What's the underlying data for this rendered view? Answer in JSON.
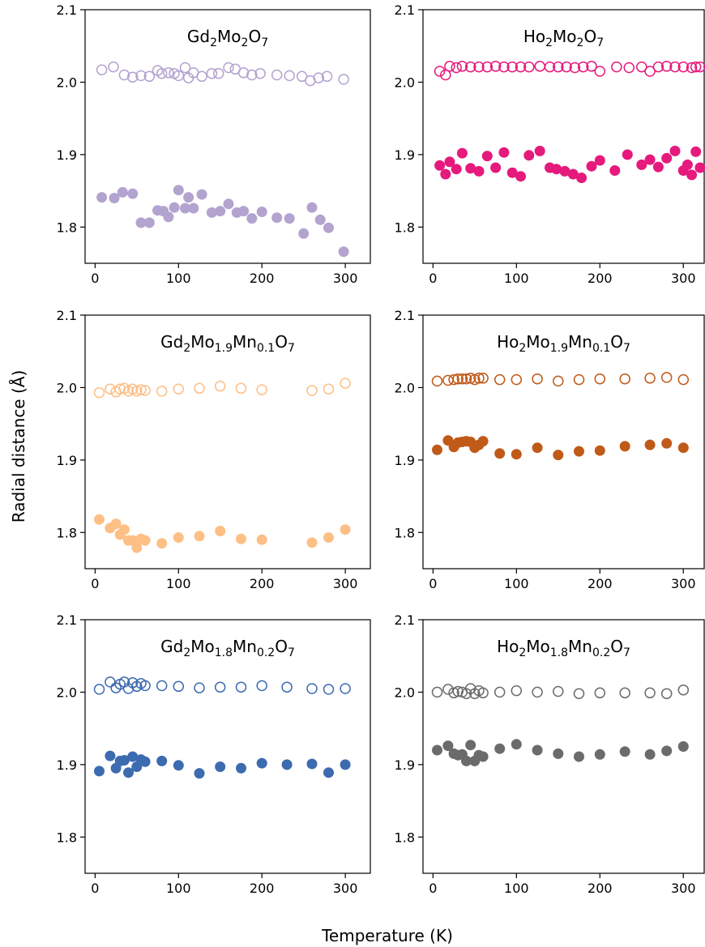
{
  "figure": {
    "xlabel": "Temperature (K)",
    "ylabel": "Radial distance (Å)"
  },
  "chart_data": [
    {
      "type": "scatter",
      "title_parts": [
        "Gd",
        "2",
        "Mo",
        "2",
        "O",
        "7"
      ],
      "color": "#b3a3cf",
      "xlim": [
        -12,
        330
      ],
      "ylim": [
        1.75,
        2.1
      ],
      "xticks": [
        0,
        100,
        200,
        300
      ],
      "yticks": [
        1.8,
        1.9,
        2.0,
        2.1
      ],
      "series": [
        {
          "marker": "open",
          "x": [
            8,
            22,
            35,
            45,
            55,
            65,
            75,
            80,
            88,
            95,
            100,
            108,
            112,
            118,
            128,
            140,
            148,
            160,
            168,
            178,
            188,
            198,
            218,
            233,
            248,
            258,
            268,
            278,
            298
          ],
          "y": [
            2.017,
            2.021,
            2.01,
            2.007,
            2.009,
            2.008,
            2.016,
            2.012,
            2.013,
            2.012,
            2.009,
            2.02,
            2.006,
            2.013,
            2.008,
            2.012,
            2.012,
            2.02,
            2.018,
            2.013,
            2.01,
            2.012,
            2.01,
            2.009,
            2.008,
            2.002,
            2.006,
            2.008,
            2.004
          ]
        },
        {
          "marker": "filled",
          "x": [
            8,
            23,
            33,
            45,
            55,
            65,
            75,
            82,
            88,
            95,
            100,
            108,
            112,
            118,
            128,
            140,
            150,
            160,
            170,
            178,
            188,
            200,
            218,
            233,
            250,
            260,
            270,
            280,
            298
          ],
          "y": [
            1.841,
            1.84,
            1.848,
            1.846,
            1.806,
            1.806,
            1.823,
            1.822,
            1.814,
            1.827,
            1.851,
            1.826,
            1.841,
            1.826,
            1.845,
            1.82,
            1.822,
            1.832,
            1.82,
            1.822,
            1.812,
            1.821,
            1.813,
            1.812,
            1.791,
            1.827,
            1.81,
            1.799,
            1.766
          ]
        }
      ]
    },
    {
      "type": "scatter",
      "title_parts": [
        "Ho",
        "2",
        "Mo",
        "2",
        "O",
        "7"
      ],
      "color": "#e6197d",
      "xlim": [
        -12,
        325
      ],
      "ylim": [
        1.75,
        2.1
      ],
      "xticks": [
        0,
        100,
        200,
        300
      ],
      "yticks": [
        1.8,
        1.9,
        2.0,
        2.1
      ],
      "series": [
        {
          "marker": "open",
          "x": [
            8,
            15,
            20,
            28,
            35,
            45,
            55,
            65,
            75,
            85,
            95,
            105,
            115,
            128,
            140,
            150,
            160,
            170,
            180,
            190,
            200,
            220,
            235,
            250,
            260,
            270,
            280,
            290,
            300,
            310,
            315,
            320
          ],
          "y": [
            2.015,
            2.01,
            2.022,
            2.02,
            2.022,
            2.021,
            2.021,
            2.021,
            2.022,
            2.021,
            2.021,
            2.021,
            2.021,
            2.022,
            2.021,
            2.021,
            2.021,
            2.02,
            2.021,
            2.022,
            2.015,
            2.021,
            2.02,
            2.021,
            2.015,
            2.021,
            2.022,
            2.021,
            2.021,
            2.02,
            2.021,
            2.021
          ]
        },
        {
          "marker": "filled",
          "x": [
            8,
            15,
            20,
            28,
            35,
            45,
            55,
            65,
            75,
            85,
            95,
            105,
            115,
            128,
            140,
            148,
            158,
            168,
            178,
            190,
            200,
            218,
            233,
            250,
            260,
            270,
            280,
            290,
            300,
            305,
            310,
            315,
            320
          ],
          "y": [
            1.885,
            1.873,
            1.89,
            1.88,
            1.902,
            1.881,
            1.877,
            1.898,
            1.882,
            1.903,
            1.875,
            1.87,
            1.899,
            1.905,
            1.882,
            1.88,
            1.877,
            1.873,
            1.868,
            1.884,
            1.892,
            1.878,
            1.9,
            1.886,
            1.893,
            1.883,
            1.895,
            1.905,
            1.878,
            1.886,
            1.872,
            1.904,
            1.882
          ]
        }
      ]
    },
    {
      "type": "scatter",
      "title_parts": [
        "Gd",
        "2",
        "Mo",
        "1.9",
        "Mn",
        "0.1",
        "O",
        "7"
      ],
      "color": "#fdbf85",
      "xlim": [
        -12,
        330
      ],
      "ylim": [
        1.75,
        2.1
      ],
      "xticks": [
        0,
        100,
        200,
        300
      ],
      "yticks": [
        1.8,
        1.9,
        2.0,
        2.1
      ],
      "series": [
        {
          "marker": "open",
          "x": [
            5,
            18,
            25,
            30,
            35,
            40,
            45,
            50,
            55,
            60,
            80,
            100,
            125,
            150,
            175,
            200,
            260,
            280,
            300
          ],
          "y": [
            1.993,
            1.998,
            1.994,
            1.998,
            1.999,
            1.995,
            1.998,
            1.995,
            1.997,
            1.996,
            1.995,
            1.998,
            1.999,
            2.002,
            1.999,
            1.997,
            1.996,
            1.998,
            2.006
          ]
        },
        {
          "marker": "filled",
          "x": [
            5,
            18,
            25,
            30,
            35,
            40,
            45,
            50,
            55,
            60,
            80,
            100,
            125,
            150,
            175,
            200,
            260,
            280,
            300
          ],
          "y": [
            1.818,
            1.806,
            1.812,
            1.797,
            1.804,
            1.789,
            1.789,
            1.779,
            1.791,
            1.789,
            1.785,
            1.793,
            1.795,
            1.802,
            1.791,
            1.79,
            1.786,
            1.793,
            1.804
          ]
        }
      ]
    },
    {
      "type": "scatter",
      "title_parts": [
        "Ho",
        "2",
        "Mo",
        "1.9",
        "Mn",
        "0.1",
        "O",
        "7"
      ],
      "color": "#c05a18",
      "xlim": [
        -12,
        325
      ],
      "ylim": [
        1.75,
        2.1
      ],
      "xticks": [
        0,
        100,
        200,
        300
      ],
      "yticks": [
        1.8,
        1.9,
        2.0,
        2.1
      ],
      "series": [
        {
          "marker": "open",
          "x": [
            5,
            18,
            25,
            30,
            35,
            40,
            45,
            50,
            55,
            60,
            80,
            100,
            125,
            150,
            175,
            200,
            230,
            260,
            280,
            300
          ],
          "y": [
            2.009,
            2.01,
            2.011,
            2.012,
            2.012,
            2.012,
            2.013,
            2.011,
            2.013,
            2.013,
            2.011,
            2.011,
            2.012,
            2.009,
            2.011,
            2.012,
            2.012,
            2.013,
            2.014,
            2.011
          ]
        },
        {
          "marker": "filled",
          "x": [
            5,
            18,
            25,
            30,
            35,
            40,
            45,
            50,
            55,
            60,
            80,
            100,
            125,
            150,
            175,
            200,
            230,
            260,
            280,
            300
          ],
          "y": [
            1.914,
            1.927,
            1.918,
            1.924,
            1.925,
            1.926,
            1.925,
            1.917,
            1.921,
            1.926,
            1.909,
            1.908,
            1.917,
            1.907,
            1.912,
            1.913,
            1.919,
            1.921,
            1.923,
            1.917
          ]
        }
      ]
    },
    {
      "type": "scatter",
      "title_parts": [
        "Gd",
        "2",
        "Mo",
        "1.8",
        "Mn",
        "0.2",
        "O",
        "7"
      ],
      "color": "#3d6bb0",
      "xlim": [
        -12,
        330
      ],
      "ylim": [
        1.75,
        2.1
      ],
      "xticks": [
        0,
        100,
        200,
        300
      ],
      "yticks": [
        1.8,
        1.9,
        2.0,
        2.1
      ],
      "series": [
        {
          "marker": "open",
          "x": [
            5,
            18,
            25,
            30,
            35,
            40,
            45,
            50,
            55,
            60,
            80,
            100,
            125,
            150,
            175,
            200,
            230,
            260,
            280,
            300
          ],
          "y": [
            2.004,
            2.014,
            2.006,
            2.011,
            2.014,
            2.005,
            2.013,
            2.008,
            2.012,
            2.009,
            2.009,
            2.008,
            2.006,
            2.007,
            2.007,
            2.009,
            2.007,
            2.005,
            2.004,
            2.005
          ]
        },
        {
          "marker": "filled",
          "x": [
            5,
            18,
            25,
            30,
            35,
            40,
            45,
            50,
            55,
            60,
            80,
            100,
            125,
            150,
            175,
            200,
            230,
            260,
            280,
            300
          ],
          "y": [
            1.891,
            1.912,
            1.895,
            1.905,
            1.906,
            1.889,
            1.911,
            1.897,
            1.907,
            1.904,
            1.905,
            1.899,
            1.888,
            1.897,
            1.895,
            1.902,
            1.9,
            1.901,
            1.889,
            1.9
          ]
        }
      ]
    },
    {
      "type": "scatter",
      "title_parts": [
        "Ho",
        "2",
        "Mo",
        "1.8",
        "Mn",
        "0.2",
        "O",
        "7"
      ],
      "color": "#6b6b6b",
      "xlim": [
        -12,
        325
      ],
      "ylim": [
        1.75,
        2.1
      ],
      "xticks": [
        0,
        100,
        200,
        300
      ],
      "yticks": [
        1.8,
        1.9,
        2.0,
        2.1
      ],
      "series": [
        {
          "marker": "open",
          "x": [
            5,
            18,
            25,
            30,
            35,
            40,
            45,
            50,
            55,
            60,
            80,
            100,
            125,
            150,
            175,
            200,
            230,
            260,
            280,
            300
          ],
          "y": [
            2.0,
            2.004,
            1.999,
            2.001,
            2.0,
            1.998,
            2.005,
            1.998,
            2.002,
            1.999,
            2.0,
            2.002,
            2.0,
            2.001,
            1.998,
            1.999,
            1.999,
            1.999,
            1.998,
            2.003
          ]
        },
        {
          "marker": "filled",
          "x": [
            5,
            18,
            25,
            30,
            35,
            40,
            45,
            50,
            55,
            60,
            80,
            100,
            125,
            150,
            175,
            200,
            230,
            260,
            280,
            300
          ],
          "y": [
            1.92,
            1.926,
            1.915,
            1.913,
            1.914,
            1.905,
            1.927,
            1.905,
            1.913,
            1.911,
            1.922,
            1.928,
            1.92,
            1.915,
            1.911,
            1.914,
            1.918,
            1.914,
            1.919,
            1.925
          ]
        }
      ]
    }
  ]
}
